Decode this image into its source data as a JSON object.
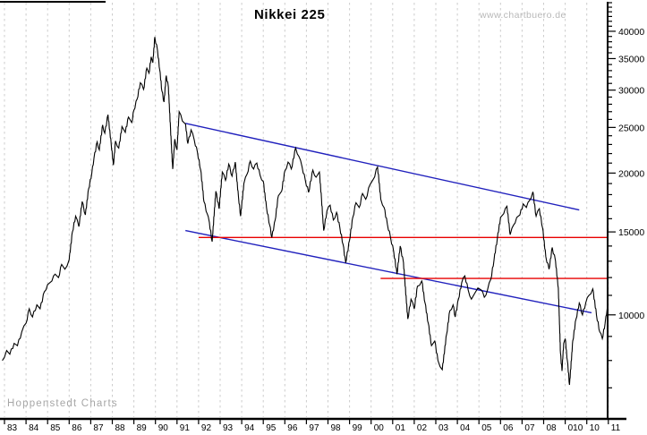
{
  "header": {
    "title": "Nikkei 225",
    "watermark": "www.chartbuero.de"
  },
  "footer": {
    "watermark": "Hoppenstedt Charts"
  },
  "colors": {
    "price_line": "#000000",
    "trend_line_blue": "#2121bd",
    "horizontal_line_red": "#e80000",
    "grid": "#cccccc",
    "axis": "#000000",
    "watermark_gray": "#b8b8b8"
  },
  "chart_data": {
    "type": "line",
    "title": "Nikkei 225",
    "xlabel": "",
    "ylabel": "",
    "grid": "vertical-dashed",
    "legend_position": "none",
    "x_axis": {
      "position": "bottom",
      "year_start": 1983,
      "year_end": 2011,
      "tick_labels": [
        "83",
        "84",
        "85",
        "86",
        "87",
        "88",
        "89",
        "90",
        "91",
        "92",
        "93",
        "94",
        "95",
        "96",
        "97",
        "98",
        "99",
        "00",
        "01",
        "02",
        "03",
        "04",
        "05",
        "06",
        "07",
        "08",
        "010",
        "10",
        "11"
      ]
    },
    "y_axis": {
      "position": "right",
      "scale": "log",
      "min": 6040,
      "max": 46000,
      "major_ticks": [
        10000,
        15000,
        20000,
        25000,
        30000,
        35000,
        40000
      ],
      "major_tick_labels": [
        "10000",
        "15000",
        "20000",
        "25000",
        "30000",
        "35000",
        "40000"
      ],
      "minor_tick_step": 1000
    },
    "series": [
      {
        "name": "Nikkei 225",
        "color": "#000000",
        "points": [
          [
            1982.9,
            8000
          ],
          [
            1983.1,
            8400
          ],
          [
            1983.25,
            8250
          ],
          [
            1983.45,
            8700
          ],
          [
            1983.6,
            8600
          ],
          [
            1983.8,
            9200
          ],
          [
            1984.0,
            9600
          ],
          [
            1984.15,
            10300
          ],
          [
            1984.3,
            9900
          ],
          [
            1984.5,
            10500
          ],
          [
            1984.65,
            10300
          ],
          [
            1984.85,
            11200
          ],
          [
            1985.0,
            11600
          ],
          [
            1985.2,
            11800
          ],
          [
            1985.35,
            12200
          ],
          [
            1985.5,
            12000
          ],
          [
            1985.65,
            12800
          ],
          [
            1985.8,
            12500
          ],
          [
            1986.0,
            13100
          ],
          [
            1986.15,
            15000
          ],
          [
            1986.3,
            16200
          ],
          [
            1986.45,
            15400
          ],
          [
            1986.6,
            17400
          ],
          [
            1986.75,
            16300
          ],
          [
            1986.9,
            18500
          ],
          [
            1987.05,
            20000
          ],
          [
            1987.15,
            21500
          ],
          [
            1987.3,
            23300
          ],
          [
            1987.4,
            22400
          ],
          [
            1987.55,
            25300
          ],
          [
            1987.65,
            24300
          ],
          [
            1987.8,
            26600
          ],
          [
            1987.95,
            23000
          ],
          [
            1988.05,
            20800
          ],
          [
            1988.15,
            23400
          ],
          [
            1988.3,
            22600
          ],
          [
            1988.45,
            25100
          ],
          [
            1988.6,
            24400
          ],
          [
            1988.75,
            26300
          ],
          [
            1988.9,
            25600
          ],
          [
            1989.0,
            27200
          ],
          [
            1989.15,
            28700
          ],
          [
            1989.3,
            31100
          ],
          [
            1989.45,
            30100
          ],
          [
            1989.6,
            33400
          ],
          [
            1989.7,
            32600
          ],
          [
            1989.8,
            35300
          ],
          [
            1989.88,
            34300
          ],
          [
            1989.97,
            38900
          ],
          [
            1990.1,
            36300
          ],
          [
            1990.2,
            33100
          ],
          [
            1990.3,
            29900
          ],
          [
            1990.4,
            28300
          ],
          [
            1990.5,
            32200
          ],
          [
            1990.6,
            30400
          ],
          [
            1990.7,
            24800
          ],
          [
            1990.8,
            20400
          ],
          [
            1990.9,
            23600
          ],
          [
            1991.0,
            22400
          ],
          [
            1991.1,
            27000
          ],
          [
            1991.25,
            25800
          ],
          [
            1991.4,
            25400
          ],
          [
            1991.5,
            23100
          ],
          [
            1991.65,
            24700
          ],
          [
            1991.8,
            23500
          ],
          [
            1991.95,
            22100
          ],
          [
            1992.1,
            20300
          ],
          [
            1992.25,
            17400
          ],
          [
            1992.4,
            16400
          ],
          [
            1992.5,
            15700
          ],
          [
            1992.63,
            14300
          ],
          [
            1992.8,
            18300
          ],
          [
            1992.95,
            16800
          ],
          [
            1993.1,
            20100
          ],
          [
            1993.25,
            19300
          ],
          [
            1993.4,
            20900
          ],
          [
            1993.55,
            19700
          ],
          [
            1993.7,
            21100
          ],
          [
            1993.85,
            17800
          ],
          [
            1993.95,
            16200
          ],
          [
            1994.1,
            19000
          ],
          [
            1994.25,
            19900
          ],
          [
            1994.4,
            21200
          ],
          [
            1994.55,
            20400
          ],
          [
            1994.7,
            21000
          ],
          [
            1994.85,
            19800
          ],
          [
            1995.0,
            19200
          ],
          [
            1995.15,
            16900
          ],
          [
            1995.3,
            15500
          ],
          [
            1995.4,
            14600
          ],
          [
            1995.55,
            15900
          ],
          [
            1995.7,
            17900
          ],
          [
            1995.85,
            18300
          ],
          [
            1996.0,
            20200
          ],
          [
            1996.15,
            21100
          ],
          [
            1996.3,
            20400
          ],
          [
            1996.5,
            22600
          ],
          [
            1996.65,
            21700
          ],
          [
            1996.8,
            20600
          ],
          [
            1996.95,
            19300
          ],
          [
            1997.1,
            18200
          ],
          [
            1997.3,
            20300
          ],
          [
            1997.45,
            19600
          ],
          [
            1997.6,
            20100
          ],
          [
            1997.7,
            17600
          ],
          [
            1997.8,
            15100
          ],
          [
            1997.95,
            16600
          ],
          [
            1998.1,
            17100
          ],
          [
            1998.25,
            15900
          ],
          [
            1998.4,
            16500
          ],
          [
            1998.55,
            15300
          ],
          [
            1998.7,
            14100
          ],
          [
            1998.82,
            12900
          ],
          [
            1999.0,
            14400
          ],
          [
            1999.15,
            16100
          ],
          [
            1999.3,
            17300
          ],
          [
            1999.45,
            16900
          ],
          [
            1999.6,
            18100
          ],
          [
            1999.75,
            17600
          ],
          [
            1999.95,
            18900
          ],
          [
            2000.1,
            19400
          ],
          [
            2000.3,
            20600
          ],
          [
            2000.45,
            17600
          ],
          [
            2000.6,
            16900
          ],
          [
            2000.75,
            15600
          ],
          [
            2000.9,
            14600
          ],
          [
            2001.05,
            13600
          ],
          [
            2001.2,
            12200
          ],
          [
            2001.35,
            14000
          ],
          [
            2001.5,
            12900
          ],
          [
            2001.7,
            9800
          ],
          [
            2001.85,
            10800
          ],
          [
            2002.0,
            10300
          ],
          [
            2002.15,
            11500
          ],
          [
            2002.35,
            11800
          ],
          [
            2002.5,
            10600
          ],
          [
            2002.65,
            9600
          ],
          [
            2002.8,
            8600
          ],
          [
            2002.95,
            8800
          ],
          [
            2003.1,
            8000
          ],
          [
            2003.3,
            7650
          ],
          [
            2003.5,
            9100
          ],
          [
            2003.65,
            10200
          ],
          [
            2003.8,
            10500
          ],
          [
            2003.9,
            9900
          ],
          [
            2004.05,
            10800
          ],
          [
            2004.2,
            11700
          ],
          [
            2004.35,
            12100
          ],
          [
            2004.5,
            11300
          ],
          [
            2004.65,
            10800
          ],
          [
            2004.8,
            11100
          ],
          [
            2004.95,
            11400
          ],
          [
            2005.1,
            11300
          ],
          [
            2005.25,
            10900
          ],
          [
            2005.4,
            11300
          ],
          [
            2005.55,
            11900
          ],
          [
            2005.7,
            13100
          ],
          [
            2005.85,
            14500
          ],
          [
            2006.0,
            16100
          ],
          [
            2006.15,
            16400
          ],
          [
            2006.3,
            17000
          ],
          [
            2006.45,
            14800
          ],
          [
            2006.6,
            15500
          ],
          [
            2006.75,
            16100
          ],
          [
            2006.9,
            16300
          ],
          [
            2007.05,
            17200
          ],
          [
            2007.2,
            16900
          ],
          [
            2007.35,
            17500
          ],
          [
            2007.5,
            18250
          ],
          [
            2007.65,
            16200
          ],
          [
            2007.8,
            16800
          ],
          [
            2007.95,
            15300
          ],
          [
            2008.1,
            13300
          ],
          [
            2008.25,
            12500
          ],
          [
            2008.4,
            13900
          ],
          [
            2008.55,
            13000
          ],
          [
            2008.68,
            11400
          ],
          [
            2008.78,
            8300
          ],
          [
            2008.85,
            7600
          ],
          [
            2008.93,
            8700
          ],
          [
            2009.0,
            8900
          ],
          [
            2009.1,
            8000
          ],
          [
            2009.2,
            7100
          ],
          [
            2009.35,
            8800
          ],
          [
            2009.5,
            9800
          ],
          [
            2009.65,
            10600
          ],
          [
            2009.8,
            10000
          ],
          [
            2009.95,
            10600
          ],
          [
            2010.1,
            11000
          ],
          [
            2010.28,
            11350
          ],
          [
            2010.45,
            10000
          ],
          [
            2010.6,
            9200
          ],
          [
            2010.72,
            8900
          ],
          [
            2010.85,
            9600
          ],
          [
            2010.95,
            10350
          ],
          [
            2011.05,
            9600
          ]
        ]
      }
    ],
    "annotations": [
      {
        "name": "upper-channel-trendline",
        "type": "trendline",
        "color": "#2121bd",
        "x1": 1991.39,
        "y1": 25500,
        "x2": 2009.65,
        "y2": 16700
      },
      {
        "name": "lower-channel-trendline",
        "type": "trendline",
        "color": "#2121bd",
        "x1": 1991.39,
        "y1": 15100,
        "x2": 2010.22,
        "y2": 10100
      },
      {
        "name": "horizontal-resistance-line",
        "type": "hline",
        "color": "#e80000",
        "x1": 1992.0,
        "x2": 2010.97,
        "y": 14600
      },
      {
        "name": "horizontal-support-line",
        "type": "hline",
        "color": "#e80000",
        "x1": 2000.44,
        "x2": 2010.97,
        "y": 11950
      }
    ]
  }
}
